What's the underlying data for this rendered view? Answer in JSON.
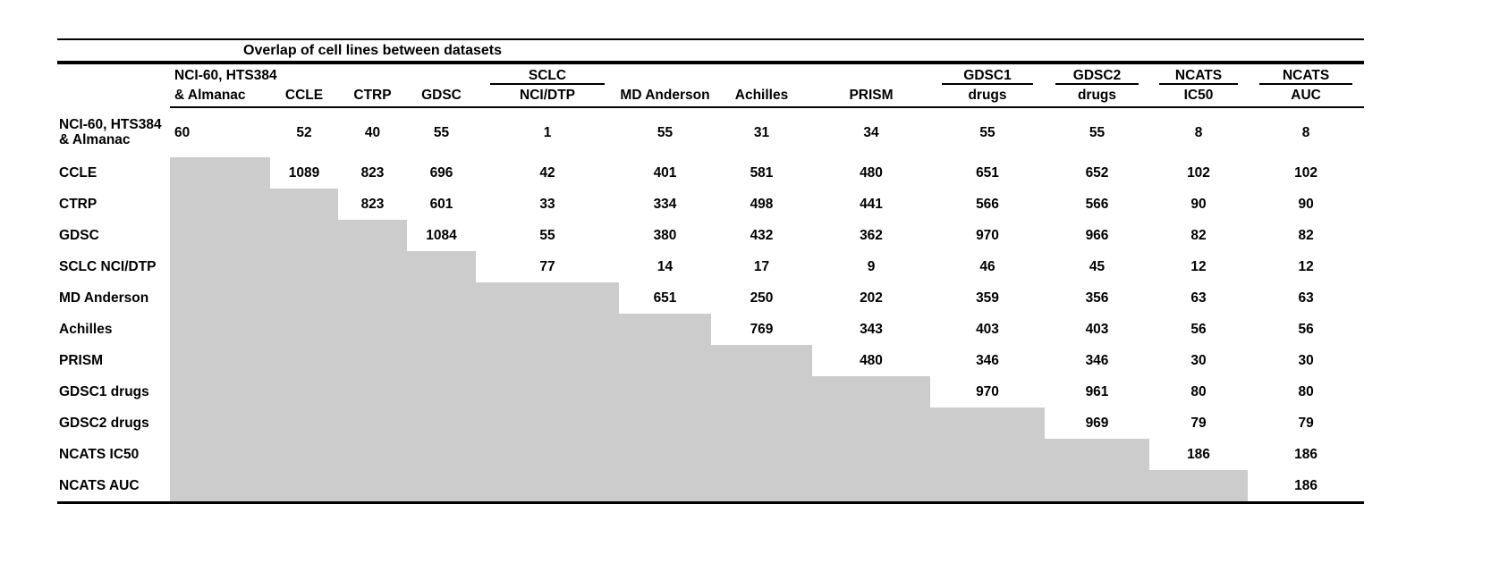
{
  "colors": {
    "shaded_cell": "#cccccc",
    "rule": "#000000",
    "background": "#ffffff",
    "text": "#000000"
  },
  "chart_data": {
    "type": "table",
    "title": "Overlap of cell lines between datasets",
    "layout_hints": {
      "lower_triangle": "shaded gray (null values)",
      "upper_triangle_and_diagonal": "numeric overlap counts",
      "rules": [
        "thin top rule",
        "thick rule under title",
        "rule under column headers spanning data columns only",
        "thick bottom rule"
      ]
    },
    "columns": [
      {
        "line1": "NCI-60, HTS384",
        "line2": "& Almanac",
        "underline": false,
        "align": "left"
      },
      {
        "line1": "",
        "line2": "CCLE",
        "underline": false,
        "align": "center"
      },
      {
        "line1": "",
        "line2": "CTRP",
        "underline": false,
        "align": "center"
      },
      {
        "line1": "",
        "line2": "GDSC",
        "underline": false,
        "align": "center"
      },
      {
        "line1": "SCLC",
        "line2": "NCI/DTP",
        "underline": true,
        "align": "center"
      },
      {
        "line1": "",
        "line2": "MD Anderson",
        "underline": false,
        "align": "center"
      },
      {
        "line1": "",
        "line2": "Achilles",
        "underline": false,
        "align": "center"
      },
      {
        "line1": "",
        "line2": "PRISM",
        "underline": false,
        "align": "center"
      },
      {
        "line1": "GDSC1",
        "line2": "drugs",
        "underline": true,
        "align": "center"
      },
      {
        "line1": "GDSC2",
        "line2": "drugs",
        "underline": true,
        "align": "center"
      },
      {
        "line1": "NCATS",
        "line2": "IC50",
        "underline": true,
        "align": "center"
      },
      {
        "line1": "NCATS",
        "line2": "AUC",
        "underline": true,
        "align": "center"
      }
    ],
    "rows": [
      {
        "label": "NCI-60, HTS384 & Almanac",
        "values": [
          60,
          52,
          40,
          55,
          1,
          55,
          31,
          34,
          55,
          55,
          8,
          8
        ]
      },
      {
        "label": "CCLE",
        "values": [
          null,
          1089,
          823,
          696,
          42,
          401,
          581,
          480,
          651,
          652,
          102,
          102
        ]
      },
      {
        "label": "CTRP",
        "values": [
          null,
          null,
          823,
          601,
          33,
          334,
          498,
          441,
          566,
          566,
          90,
          90
        ]
      },
      {
        "label": "GDSC",
        "values": [
          null,
          null,
          null,
          1084,
          55,
          380,
          432,
          362,
          970,
          966,
          82,
          82
        ]
      },
      {
        "label": "SCLC NCI/DTP",
        "values": [
          null,
          null,
          null,
          null,
          77,
          14,
          17,
          9,
          46,
          45,
          12,
          12
        ]
      },
      {
        "label": "MD Anderson",
        "values": [
          null,
          null,
          null,
          null,
          null,
          651,
          250,
          202,
          359,
          356,
          63,
          63
        ]
      },
      {
        "label": "Achilles",
        "values": [
          null,
          null,
          null,
          null,
          null,
          null,
          769,
          343,
          403,
          403,
          56,
          56
        ]
      },
      {
        "label": "PRISM",
        "values": [
          null,
          null,
          null,
          null,
          null,
          null,
          null,
          480,
          346,
          346,
          30,
          30
        ]
      },
      {
        "label": "GDSC1 drugs",
        "values": [
          null,
          null,
          null,
          null,
          null,
          null,
          null,
          null,
          970,
          961,
          80,
          80
        ]
      },
      {
        "label": "GDSC2 drugs",
        "values": [
          null,
          null,
          null,
          null,
          null,
          null,
          null,
          null,
          null,
          969,
          79,
          79
        ]
      },
      {
        "label": "NCATS IC50",
        "values": [
          null,
          null,
          null,
          null,
          null,
          null,
          null,
          null,
          null,
          null,
          186,
          186
        ]
      },
      {
        "label": "NCATS AUC",
        "values": [
          null,
          null,
          null,
          null,
          null,
          null,
          null,
          null,
          null,
          null,
          null,
          186
        ]
      }
    ]
  }
}
